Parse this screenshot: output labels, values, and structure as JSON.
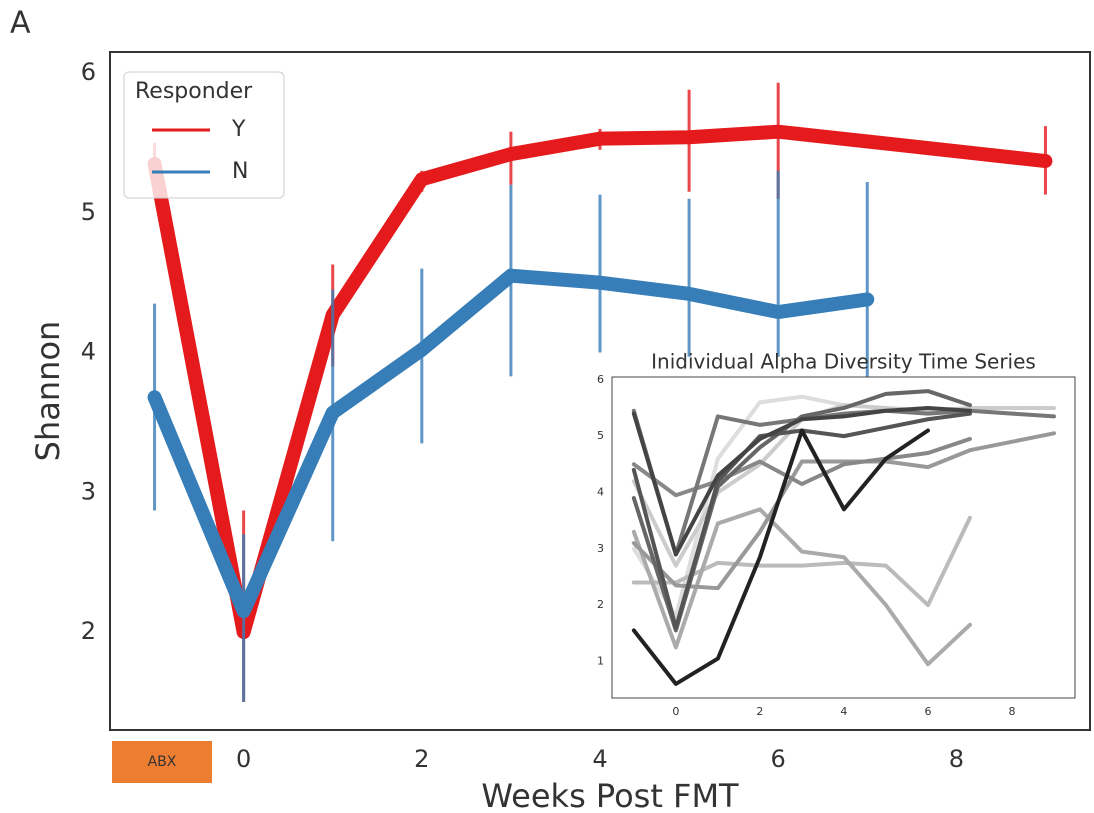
{
  "chart_data": [
    {
      "type": "line",
      "panel_label": "A",
      "annotation": "ABX",
      "annotation_color": "#ed7d31",
      "xlabel": "Weeks Post FMT",
      "ylabel": "Shannon",
      "xlim": [
        -1.5,
        9.5
      ],
      "xticks": [
        0,
        2,
        4,
        6,
        8
      ],
      "ylim": [
        1.3,
        6.15
      ],
      "yticks": [
        2,
        3,
        4,
        5,
        6
      ],
      "grid": false,
      "legend_title": "Responder",
      "legend_position": "upper left",
      "series": [
        {
          "name": "Y",
          "color": "#e41a1c",
          "x": [
            -1,
            0,
            1,
            2,
            3,
            4,
            5,
            6,
            9
          ],
          "values": [
            5.35,
            2.0,
            4.27,
            5.24,
            5.42,
            5.53,
            5.54,
            5.58,
            5.37
          ],
          "lower": [
            5.2,
            1.5,
            3.9,
            5.15,
            5.2,
            5.45,
            5.15,
            5.1,
            5.13
          ],
          "upper": [
            5.5,
            2.87,
            4.63,
            5.3,
            5.58,
            5.6,
            5.88,
            5.93,
            5.62
          ]
        },
        {
          "name": "N",
          "color": "#377eb8",
          "x": [
            -1,
            0,
            1,
            2,
            3,
            4,
            5,
            6,
            7
          ],
          "values": [
            3.68,
            2.15,
            3.57,
            4.02,
            4.55,
            4.5,
            4.42,
            4.29,
            4.38
          ],
          "lower": [
            2.87,
            1.5,
            2.65,
            3.35,
            3.83,
            4.0,
            3.97,
            3.97,
            3.6
          ],
          "upper": [
            4.35,
            2.7,
            4.45,
            4.6,
            5.2,
            5.13,
            5.1,
            5.3,
            5.22
          ]
        }
      ]
    },
    {
      "type": "line",
      "title": "Inidividual Alpha Diversity Time Series",
      "xlim": [
        -1.52,
        9.5
      ],
      "xticks": [
        0,
        2,
        4,
        6,
        8
      ],
      "ylim": [
        0.35,
        6.05
      ],
      "yticks": [
        1,
        2,
        3,
        4,
        5,
        6
      ],
      "grid": false,
      "series": [
        {
          "color": "#dddddd",
          "x": [
            -1,
            0,
            1,
            2,
            3,
            4
          ],
          "values": [
            3.0,
            1.8,
            4.6,
            5.6,
            5.7,
            5.55
          ]
        },
        {
          "color": "#cccccc",
          "x": [
            -1,
            0,
            1,
            2,
            3,
            4,
            5,
            6,
            7,
            9
          ],
          "values": [
            4.2,
            2.7,
            4.0,
            4.5,
            5.3,
            5.55,
            5.5,
            5.45,
            5.5,
            5.5
          ]
        },
        {
          "color": "#bbbbbb",
          "x": [
            -1,
            0,
            1,
            2,
            3,
            4,
            5,
            6,
            7
          ],
          "values": [
            2.4,
            2.4,
            2.75,
            2.7,
            2.7,
            2.75,
            2.7,
            2.0,
            3.55
          ]
        },
        {
          "color": "#aaaaaa",
          "x": [
            -1,
            0,
            1,
            2,
            3,
            4,
            5,
            6,
            7
          ],
          "values": [
            3.3,
            1.25,
            3.45,
            3.7,
            2.95,
            2.85,
            2.0,
            0.95,
            1.65
          ]
        },
        {
          "color": "#999999",
          "x": [
            -1,
            0,
            1,
            2,
            3,
            4,
            5,
            6,
            7,
            9
          ],
          "values": [
            3.1,
            2.35,
            2.3,
            3.3,
            4.55,
            4.55,
            4.55,
            4.45,
            4.75,
            5.05
          ]
        },
        {
          "color": "#888888",
          "x": [
            -1,
            0,
            1,
            2,
            3,
            4,
            5,
            6,
            7
          ],
          "values": [
            4.5,
            3.95,
            4.2,
            4.55,
            4.15,
            4.5,
            4.6,
            4.7,
            4.95
          ]
        },
        {
          "color": "#777777",
          "x": [
            -1,
            0,
            1,
            2,
            3,
            4,
            5,
            6,
            7,
            9
          ],
          "values": [
            5.45,
            2.9,
            5.35,
            5.2,
            5.3,
            5.4,
            5.45,
            5.4,
            5.45,
            5.35
          ]
        },
        {
          "color": "#666666",
          "x": [
            -1,
            0,
            1,
            2,
            3,
            4,
            5,
            6,
            7
          ],
          "values": [
            3.9,
            1.55,
            4.1,
            4.8,
            5.35,
            5.5,
            5.75,
            5.8,
            5.55
          ]
        },
        {
          "color": "#555555",
          "x": [
            -1,
            0,
            1,
            2,
            3,
            4,
            5,
            6,
            7
          ],
          "values": [
            4.4,
            1.6,
            4.2,
            5.0,
            5.1,
            5.0,
            5.15,
            5.3,
            5.4
          ]
        },
        {
          "color": "#444444",
          "x": [
            -1,
            0,
            1,
            2,
            3,
            4,
            5,
            6,
            7
          ],
          "values": [
            5.4,
            2.9,
            4.3,
            4.95,
            5.3,
            5.35,
            5.45,
            5.5,
            5.45
          ]
        },
        {
          "color": "#222222",
          "x": [
            -1,
            0,
            1,
            2,
            3,
            4,
            5,
            6
          ],
          "values": [
            1.55,
            0.6,
            1.05,
            2.85,
            5.1,
            3.7,
            4.6,
            5.1
          ]
        }
      ]
    }
  ]
}
